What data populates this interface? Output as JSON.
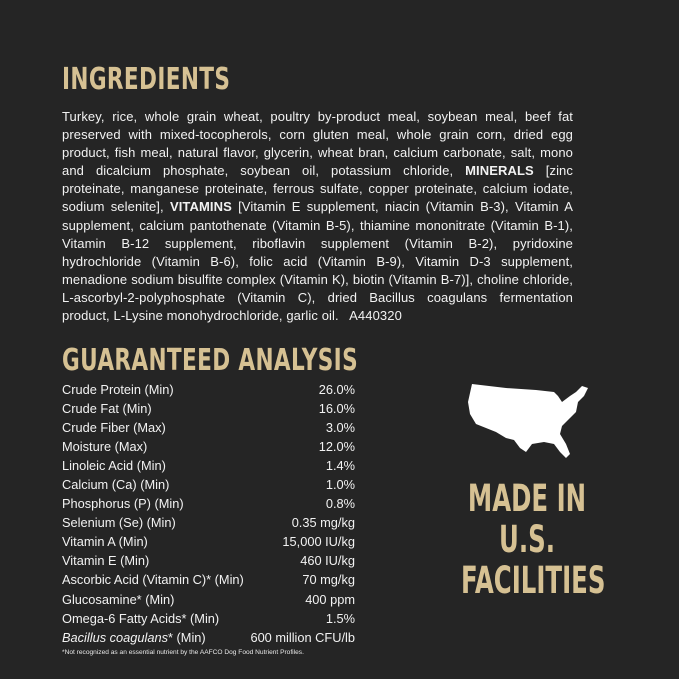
{
  "ingredients": {
    "title": "INGREDIENTS",
    "text_1": "Turkey, rice, whole grain wheat, poultry by-product meal, soybean meal, beef fat preserved with mixed-tocopherols, corn gluten meal, whole grain corn, dried egg product, fish meal, natural flavor, glycerin, wheat bran, calcium carbonate, salt, mono and dicalcium phosphate, soybean oil, potassium chloride, ",
    "minerals_label": "MINERALS",
    "text_2": " [zinc proteinate, manganese proteinate, ferrous sulfate, copper proteinate, calcium iodate, sodium selenite], ",
    "vitamins_label": "VITAMINS",
    "text_3": " [Vitamin E supplement, niacin (Vitamin B-3), Vitamin A supplement, calcium pantothenate (Vitamin B-5), thiamine mononitrate (Vitamin B-1), Vitamin B-12 supplement, riboflavin supplement (Vitamin B-2), pyridoxine hydrochloride (Vitamin B-6), folic acid (Vitamin B-9), Vitamin D-3 supplement, menadione sodium bisulfite complex (Vitamin K), biotin (Vitamin B-7)], choline chloride, L-ascorbyl-2-polyphosphate (Vitamin C), dried Bacillus coagulans fermentation product, L-Lysine monohydrochloride, garlic oil.   A440320"
  },
  "analysis": {
    "title": "GUARANTEED ANALYSIS",
    "rows": [
      {
        "label": "Crude Protein (Min)",
        "value": "26.0%"
      },
      {
        "label": "Crude Fat (Min)",
        "value": "16.0%"
      },
      {
        "label": "Crude Fiber (Max)",
        "value": "3.0%"
      },
      {
        "label": "Moisture (Max)",
        "value": "12.0%"
      },
      {
        "label": "Linoleic Acid (Min)",
        "value": "1.4%"
      },
      {
        "label": "Calcium (Ca) (Min)",
        "value": "1.0%"
      },
      {
        "label": "Phosphorus (P) (Min)",
        "value": "0.8%"
      },
      {
        "label": "Selenium (Se) (Min)",
        "value": "0.35 mg/kg"
      },
      {
        "label": "Vitamin A (Min)",
        "value": "15,000 IU/kg"
      },
      {
        "label": "Vitamin E (Min)",
        "value": "460 IU/kg"
      },
      {
        "label": "Ascorbic Acid (Vitamin C)* (Min)",
        "value": "70 mg/kg"
      },
      {
        "label": "Glucosamine* (Min)",
        "value": "400 ppm"
      },
      {
        "label": "Omega-6 Fatty Acids* (Min)",
        "value": "1.5%"
      }
    ],
    "last_row": {
      "label_italic": "Bacillus coagulans",
      "label_rest": "* (Min)",
      "value": "600 million CFU/lb"
    },
    "footnote": "*Not recognized as an essential nutrient by the AAFCO Dog Food Nutrient Profiles."
  },
  "badge": {
    "icon": "usa-map-icon",
    "line_1": "MADE IN",
    "line_2": "U.S.",
    "line_3": "FACILITIES"
  },
  "colors": {
    "background": "#252525",
    "accent": "#d6c193",
    "text": "#f2f2f2"
  }
}
